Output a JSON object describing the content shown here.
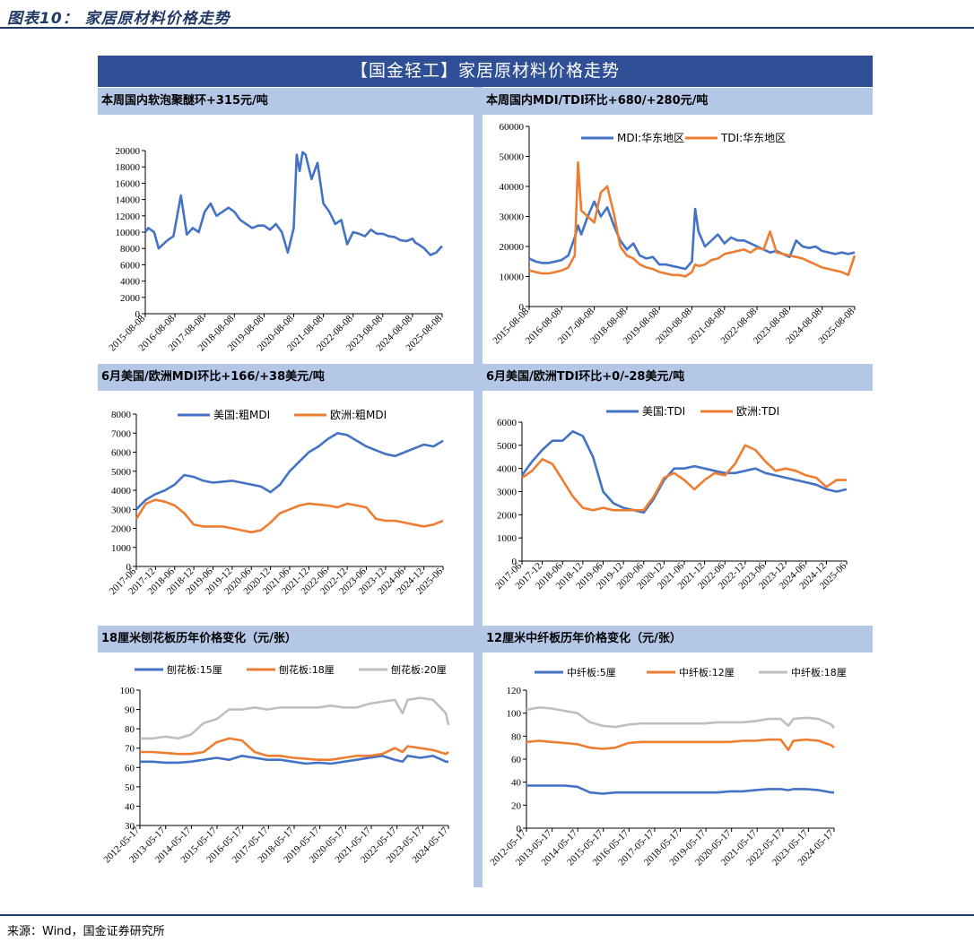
{
  "figure_caption": "图表10：  家居原材料价格走势",
  "banner_title": "【国金轻工】家居原材料价格走势",
  "source": "来源：Wind，国金证券研究所",
  "colors": {
    "blue": "#4472c4",
    "orange": "#ed7d31",
    "gray": "#bfbfbf",
    "header_bg": "#b4c7e7",
    "banner_bg": "#2f4f97"
  },
  "chart_data": [
    {
      "id": "c1",
      "type": "line",
      "title": "本周国内软泡聚醚环+315元/吨",
      "ylim": [
        0,
        20000
      ],
      "yticks": [
        "0",
        "2000",
        "4000",
        "6000",
        "8000",
        "10000",
        "12000",
        "14000",
        "16000",
        "18000",
        "20000"
      ],
      "xticks": [
        "2015-08-08",
        "2016-08-08",
        "2017-08-08",
        "2018-08-08",
        "2019-08-08",
        "2020-08-08",
        "2021-08-08",
        "2022-08-08",
        "2023-08-08",
        "2024-08-08",
        "2025-08-08"
      ],
      "x": [
        0,
        0.1,
        0.3,
        0.45,
        0.6,
        0.75,
        0.95,
        1.2,
        1.4,
        1.6,
        1.8,
        2.0,
        2.2,
        2.4,
        2.6,
        2.8,
        3.0,
        3.2,
        3.4,
        3.6,
        3.8,
        4.0,
        4.2,
        4.4,
        4.6,
        4.8,
        5.0,
        5.1,
        5.2,
        5.3,
        5.4,
        5.6,
        5.8,
        6.0,
        6.2,
        6.4,
        6.6,
        6.8,
        7.0,
        7.2,
        7.4,
        7.6,
        7.8,
        8.0,
        8.2,
        8.4,
        8.6,
        8.8,
        9.0,
        9.1,
        9.2,
        9.4,
        9.6,
        9.8,
        10.0
      ],
      "series": [
        {
          "name": "软泡聚醚",
          "color": "#4472c4",
          "values": [
            10000,
            10500,
            10000,
            8000,
            8500,
            9000,
            9500,
            14500,
            9700,
            10500,
            10000,
            12500,
            13500,
            12000,
            12500,
            13000,
            12500,
            11500,
            11000,
            10500,
            10800,
            10800,
            10300,
            11000,
            10000,
            7500,
            10500,
            19500,
            17500,
            19800,
            19500,
            16500,
            18500,
            13500,
            12500,
            11000,
            11500,
            8500,
            10000,
            9800,
            9500,
            10300,
            9800,
            9800,
            9500,
            9400,
            9000,
            8900,
            9200,
            8700,
            8500,
            8000,
            7200,
            7500,
            8300
          ]
        }
      ]
    },
    {
      "id": "c2",
      "type": "line",
      "title": "本周国内MDI/TDI环比+680/+280元/吨",
      "ylim": [
        0,
        60000
      ],
      "yticks": [
        "0",
        "10000",
        "20000",
        "30000",
        "40000",
        "50000",
        "60000"
      ],
      "xticks": [
        "2015-08-08",
        "2016-08-08",
        "2017-08-08",
        "2018-08-08",
        "2019-08-08",
        "2020-08-08",
        "2021-08-08",
        "2022-08-08",
        "2023-08-08",
        "2024-08-08",
        "2025-08-08"
      ],
      "x": [
        0,
        0.2,
        0.4,
        0.6,
        0.8,
        1.0,
        1.2,
        1.4,
        1.5,
        1.6,
        1.8,
        2.0,
        2.2,
        2.4,
        2.6,
        2.8,
        3.0,
        3.2,
        3.4,
        3.6,
        3.8,
        4.0,
        4.2,
        4.4,
        4.6,
        4.8,
        5.0,
        5.1,
        5.2,
        5.4,
        5.6,
        5.8,
        6.0,
        6.2,
        6.4,
        6.6,
        6.8,
        7.0,
        7.2,
        7.4,
        7.6,
        7.8,
        8.0,
        8.2,
        8.4,
        8.6,
        8.8,
        9.0,
        9.2,
        9.4,
        9.6,
        9.8,
        10.0
      ],
      "series": [
        {
          "name": "MDI:华东地区",
          "color": "#4472c4",
          "values": [
            16000,
            15000,
            14500,
            14500,
            15000,
            15500,
            17000,
            23000,
            27000,
            24000,
            30000,
            35000,
            30000,
            33000,
            27000,
            22000,
            19000,
            21000,
            17000,
            16000,
            16500,
            14000,
            14000,
            13500,
            13000,
            12500,
            15000,
            32500,
            25000,
            20000,
            22000,
            24000,
            21000,
            23000,
            22000,
            22000,
            21000,
            20000,
            19000,
            18000,
            18500,
            17500,
            16500,
            22000,
            20000,
            19500,
            20000,
            18500,
            18000,
            17500,
            18000,
            17500,
            18000
          ]
        },
        {
          "name": "TDI:华东地区",
          "color": "#ed7d31",
          "values": [
            12000,
            11500,
            11000,
            11000,
            11500,
            12000,
            13000,
            17000,
            48000,
            32000,
            30000,
            28000,
            38000,
            40000,
            31000,
            20000,
            17000,
            16000,
            14000,
            13000,
            12500,
            11500,
            11000,
            10500,
            10500,
            10000,
            11500,
            14000,
            13500,
            14000,
            15500,
            16000,
            17500,
            18000,
            18500,
            19000,
            18000,
            19500,
            19000,
            25000,
            18000,
            17500,
            17000,
            16500,
            16000,
            15000,
            14000,
            13000,
            12500,
            12000,
            11500,
            10500,
            17000
          ]
        }
      ]
    },
    {
      "id": "c3",
      "type": "line",
      "title": "6月美国/欧洲MDI环比+166/+38美元/吨",
      "ylim": [
        0,
        8000
      ],
      "yticks": [
        "0",
        "1000",
        "2000",
        "3000",
        "4000",
        "5000",
        "6000",
        "7000",
        "8000"
      ],
      "xticks": [
        "2017-06",
        "2017-12",
        "2018-06",
        "2018-12",
        "2019-06",
        "2019-12",
        "2020-06",
        "2020-12",
        "2021-06",
        "2021-12",
        "2022-06",
        "2022-12",
        "2023-06",
        "2023-12",
        "2024-06",
        "2024-12",
        "2025-06"
      ],
      "x": [
        0,
        0.5,
        1,
        1.5,
        2,
        2.5,
        3,
        3.5,
        4,
        4.5,
        5,
        5.5,
        6,
        6.5,
        7,
        7.5,
        8,
        8.5,
        9,
        9.5,
        10,
        10.5,
        11,
        11.5,
        12,
        12.5,
        13,
        13.5,
        14,
        14.5,
        15,
        15.5,
        16
      ],
      "series": [
        {
          "name": "美国:粗MDI",
          "color": "#4472c4",
          "values": [
            3000,
            3500,
            3800,
            4000,
            4300,
            4800,
            4700,
            4500,
            4400,
            4450,
            4500,
            4400,
            4300,
            4200,
            3900,
            4300,
            5000,
            5500,
            6000,
            6300,
            6700,
            7000,
            6900,
            6600,
            6300,
            6100,
            5900,
            5800,
            6000,
            6200,
            6400,
            6300,
            6600
          ]
        },
        {
          "name": "欧洲:粗MDI",
          "color": "#ed7d31",
          "values": [
            2500,
            3300,
            3500,
            3400,
            3200,
            2800,
            2200,
            2100,
            2100,
            2100,
            2000,
            1900,
            1800,
            1900,
            2300,
            2800,
            3000,
            3200,
            3300,
            3250,
            3200,
            3100,
            3300,
            3200,
            3100,
            2500,
            2400,
            2400,
            2300,
            2200,
            2100,
            2200,
            2400
          ]
        }
      ]
    },
    {
      "id": "c4",
      "type": "line",
      "title": "6月美国/欧洲TDI环比+0/-28美元/吨",
      "ylim": [
        0,
        6000
      ],
      "yticks": [
        "0",
        "1000",
        "2000",
        "3000",
        "4000",
        "5000",
        "6000"
      ],
      "xticks": [
        "2017-06",
        "2017-12",
        "2018-06",
        "2018-12",
        "2019-06",
        "2019-12",
        "2020-06",
        "2020-12",
        "2021-06",
        "2021-12",
        "2022-06",
        "2022-12",
        "2023-06",
        "2023-12",
        "2024-06",
        "2024-12",
        "2025-06"
      ],
      "x": [
        0,
        0.5,
        1,
        1.5,
        2,
        2.5,
        3,
        3.5,
        4,
        4.5,
        5,
        5.5,
        6,
        6.5,
        7,
        7.5,
        8,
        8.5,
        9,
        9.5,
        10,
        10.5,
        11,
        11.5,
        12,
        12.5,
        13,
        13.5,
        14,
        14.5,
        15,
        15.5,
        16
      ],
      "series": [
        {
          "name": "美国:TDI",
          "color": "#4472c4",
          "values": [
            3700,
            4300,
            4800,
            5200,
            5200,
            5600,
            5400,
            4500,
            3000,
            2500,
            2300,
            2200,
            2100,
            2700,
            3500,
            4000,
            4000,
            4100,
            4000,
            3900,
            3800,
            3800,
            3900,
            4000,
            3800,
            3700,
            3600,
            3500,
            3400,
            3300,
            3100,
            3000,
            3100
          ]
        },
        {
          "name": "欧洲:TDI",
          "color": "#ed7d31",
          "values": [
            3600,
            3900,
            4400,
            4200,
            3500,
            2800,
            2300,
            2200,
            2300,
            2200,
            2200,
            2200,
            2200,
            2800,
            3600,
            3800,
            3500,
            3100,
            3500,
            3800,
            3700,
            4200,
            5000,
            4800,
            4300,
            3900,
            4000,
            3900,
            3700,
            3600,
            3200,
            3500,
            3500
          ]
        }
      ]
    },
    {
      "id": "c5",
      "type": "line",
      "title": "18厘米刨花板历年价格变化（元/张）",
      "ylim": [
        30,
        100
      ],
      "yticks": [
        "30",
        "40",
        "50",
        "60",
        "70",
        "80",
        "90",
        "100"
      ],
      "xticks": [
        "2012-05-17",
        "2013-05-17",
        "2014-05-17",
        "2015-05-17",
        "2016-05-17",
        "2017-05-17",
        "2018-05-17",
        "2019-05-17",
        "2020-05-17",
        "2021-05-17",
        "2022-05-17",
        "2023-05-17",
        "2024-05-17"
      ],
      "x": [
        0,
        0.5,
        1,
        1.5,
        2,
        2.5,
        3,
        3.5,
        4,
        4.5,
        5,
        5.5,
        6,
        6.5,
        7,
        7.5,
        8,
        8.5,
        9,
        9.5,
        10,
        10.3,
        10.5,
        11,
        11.5,
        12,
        12.1
      ],
      "series": [
        {
          "name": "刨花板:15厘",
          "color": "#4472c4",
          "values": [
            63,
            63,
            62.5,
            62.5,
            63,
            64,
            65,
            64,
            66,
            65,
            64,
            64,
            63,
            62,
            62.5,
            62,
            63,
            64,
            65,
            66,
            64,
            63,
            66,
            65,
            66,
            63,
            63
          ]
        },
        {
          "name": "刨花板:18厘",
          "color": "#ed7d31",
          "values": [
            68,
            68,
            67.5,
            67,
            67,
            68,
            73,
            75,
            74,
            68,
            66,
            66,
            65,
            64.5,
            64,
            64,
            65,
            66,
            66,
            67,
            70,
            68,
            71,
            70,
            69,
            67,
            68
          ]
        },
        {
          "name": "刨花板:20厘",
          "color": "#bfbfbf",
          "values": [
            75,
            75,
            76,
            75,
            77,
            83,
            85,
            90,
            90,
            91,
            90,
            91,
            91,
            91,
            91,
            92,
            91,
            91,
            93,
            94,
            95,
            88,
            95,
            96,
            95,
            88,
            82
          ]
        }
      ]
    },
    {
      "id": "c6",
      "type": "line",
      "title": "12厘米中纤板历年价格变化（元/张）",
      "ylim": [
        0,
        120
      ],
      "yticks": [
        "0",
        "20",
        "40",
        "60",
        "80",
        "100",
        "120"
      ],
      "xticks": [
        "2012-05-17",
        "2013-05-17",
        "2014-05-17",
        "2015-05-17",
        "2016-05-17",
        "2017-05-17",
        "2018-05-17",
        "2019-05-17",
        "2020-05-17",
        "2021-05-17",
        "2022-05-17",
        "2023-05-17",
        "2024-05-17"
      ],
      "x": [
        0,
        0.5,
        1,
        1.5,
        2,
        2.5,
        3,
        3.5,
        4,
        4.5,
        5,
        5.5,
        6,
        6.5,
        7,
        7.5,
        8,
        8.5,
        9,
        9.5,
        10,
        10.3,
        10.5,
        11,
        11.5,
        12,
        12.1
      ],
      "series": [
        {
          "name": "中纤板:5厘",
          "color": "#4472c4",
          "values": [
            37,
            37,
            37,
            37,
            36,
            31,
            30,
            31,
            31,
            31,
            31,
            31,
            31,
            31,
            31,
            31,
            32,
            32,
            33,
            34,
            34,
            33,
            34,
            34,
            33,
            31,
            31
          ]
        },
        {
          "name": "中纤板:12厘",
          "color": "#ed7d31",
          "values": [
            75,
            76,
            75,
            74,
            73,
            70,
            69,
            70,
            74,
            75,
            75,
            75,
            75,
            75,
            75,
            75,
            75,
            76,
            76,
            77,
            77,
            68,
            76,
            77,
            76,
            72,
            70
          ]
        },
        {
          "name": "中纤板:18厘",
          "color": "#bfbfbf",
          "values": [
            103,
            105,
            104,
            102,
            100,
            92,
            89,
            88,
            90,
            91,
            91,
            91,
            91,
            91,
            91,
            92,
            92,
            92,
            93,
            95,
            95,
            89,
            95,
            96,
            95,
            90,
            87
          ]
        }
      ]
    }
  ]
}
